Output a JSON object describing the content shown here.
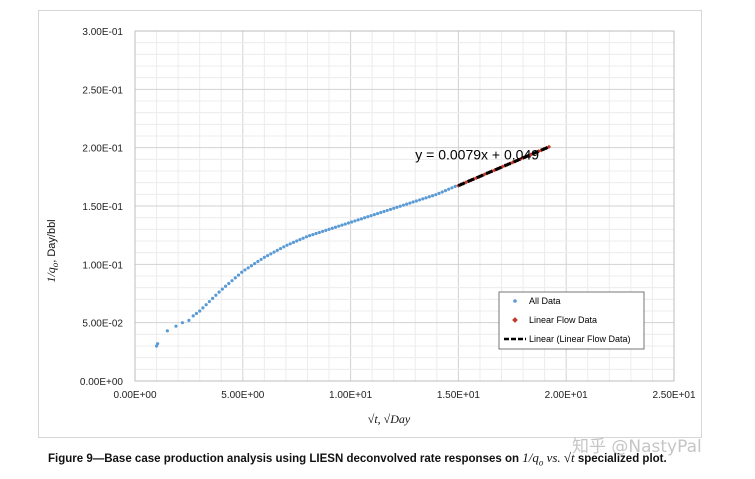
{
  "chart_data": {
    "type": "scatter",
    "xlabel": "√t, √Day",
    "ylabel": "1/q",
    "ylabel_sub": "o",
    "ylabel_unit": ", Day/bbl",
    "xlim": [
      0,
      25
    ],
    "ylim": [
      0,
      0.3
    ],
    "x_ticks": [
      0,
      5,
      10,
      15,
      20,
      25
    ],
    "x_tick_labels": [
      "0.00E+00",
      "5.00E+00",
      "1.00E+01",
      "1.50E+01",
      "2.00E+01",
      "2.50E+01"
    ],
    "y_ticks": [
      0,
      0.05,
      0.1,
      0.15,
      0.2,
      0.25,
      0.3
    ],
    "y_tick_labels": [
      "0.00E+00",
      "5.00E-02",
      "1.00E-01",
      "1.50E-01",
      "2.00E-01",
      "2.50E-01",
      "3.00E-01"
    ],
    "grid": true,
    "legend_position": "bottom-right",
    "series": [
      {
        "name": "All Data",
        "kind": "scatter",
        "color": "#5b9bd5",
        "x_range": [
          1.0,
          15.0
        ],
        "points": [
          [
            1.0,
            0.031
          ],
          [
            1.5,
            0.043
          ],
          [
            2.0,
            0.048
          ],
          [
            2.5,
            0.053
          ],
          [
            3.0,
            0.06
          ],
          [
            3.5,
            0.069
          ],
          [
            4.0,
            0.078
          ],
          [
            4.5,
            0.086
          ],
          [
            5.0,
            0.094
          ],
          [
            5.5,
            0.1
          ],
          [
            6.0,
            0.106
          ],
          [
            6.5,
            0.111
          ],
          [
            7.0,
            0.116
          ],
          [
            7.5,
            0.12
          ],
          [
            8.0,
            0.124
          ],
          [
            8.5,
            0.127
          ],
          [
            9.0,
            0.13
          ],
          [
            9.5,
            0.133
          ],
          [
            10.0,
            0.136
          ],
          [
            10.5,
            0.139
          ],
          [
            11.0,
            0.142
          ],
          [
            11.5,
            0.145
          ],
          [
            12.0,
            0.148
          ],
          [
            12.5,
            0.151
          ],
          [
            13.0,
            0.154
          ],
          [
            13.5,
            0.157
          ],
          [
            14.0,
            0.16
          ],
          [
            14.5,
            0.164
          ],
          [
            15.0,
            0.168
          ]
        ]
      },
      {
        "name": "Linear Flow Data",
        "kind": "scatter",
        "color": "#c0392b",
        "x_range": [
          15.0,
          19.2
        ]
      },
      {
        "name": "Linear (Linear Flow Data)",
        "kind": "trendline",
        "color": "#000000",
        "slope": 0.0079,
        "intercept": 0.049,
        "x_range": [
          15.0,
          19.2
        ]
      }
    ],
    "annotations": [
      {
        "text": "y = 0.0079x + 0.049",
        "x": 13.0,
        "y": 0.19
      }
    ]
  },
  "caption": {
    "prefix": "Figure 9—Base case production analysis using LIESN deconvolved rate responses on ",
    "math": "1/q",
    "math_sub": "o",
    "vs": " vs. ",
    "sqrt_t": "√t",
    "suffix": " specialized plot."
  },
  "watermark": "知乎 @NastyPal"
}
